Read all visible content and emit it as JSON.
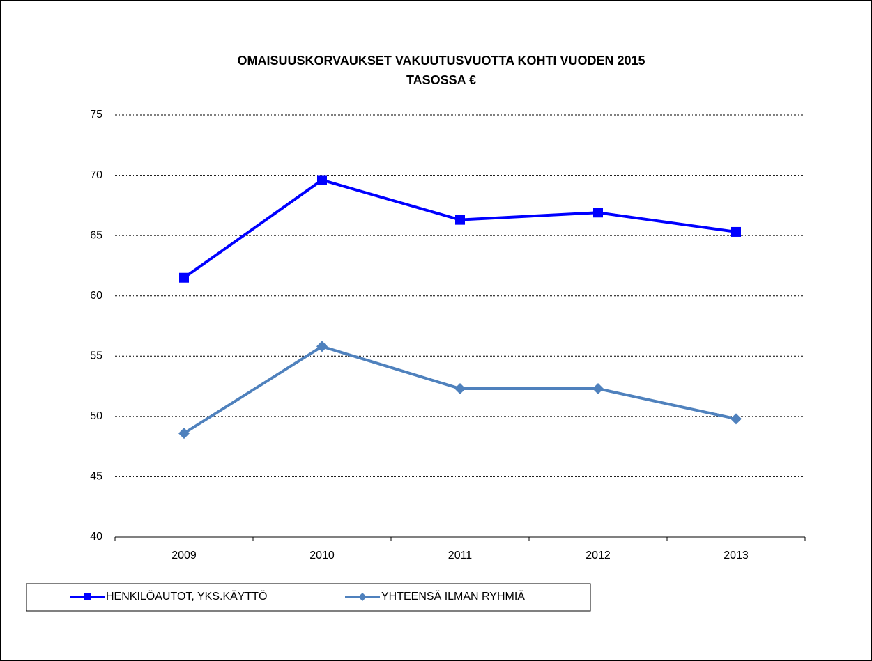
{
  "chart_data": {
    "type": "line",
    "title": "OMAISUUSKORVAUKSET VAKUUTUSVUOTTA KOHTI VUODEN 2015",
    "subtitle": "TASOSSA €",
    "categories": [
      "2009",
      "2010",
      "2011",
      "2012",
      "2013"
    ],
    "series": [
      {
        "name": "HENKILÖAUTOT, YKS.KÄYTTÖ",
        "color": "#0000ff",
        "marker": "square",
        "values": [
          61.5,
          69.6,
          66.3,
          66.9,
          65.3
        ]
      },
      {
        "name": "YHTEENSÄ ILMAN RYHMIÄ",
        "color": "#4f81bd",
        "marker": "diamond",
        "values": [
          48.6,
          55.8,
          52.3,
          52.3,
          49.8
        ]
      }
    ],
    "ylim": [
      40,
      75
    ],
    "yticks": [
      40,
      45,
      50,
      55,
      60,
      65,
      70,
      75
    ],
    "grid": true,
    "legend": "bottom"
  }
}
